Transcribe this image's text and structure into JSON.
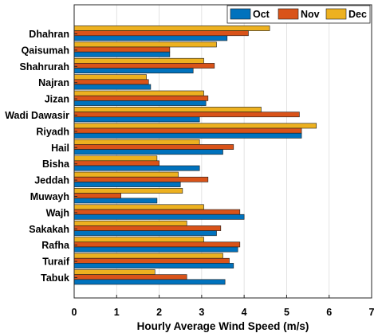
{
  "chart_data": {
    "type": "bar",
    "orientation": "horizontal",
    "categories": [
      "Dhahran",
      "Qaisumah",
      "Shahrurah",
      "Najran",
      "Jizan",
      "Wadi Dawasir",
      "Riyadh",
      "Hail",
      "Bisha",
      "Jeddah",
      "Muwayh",
      "Wajh",
      "Sakakah",
      "Rafha",
      "Turaif",
      "Tabuk"
    ],
    "series": [
      {
        "name": "Oct",
        "color": "#0072BD",
        "values": [
          3.6,
          2.25,
          2.8,
          1.8,
          3.1,
          2.95,
          5.35,
          3.5,
          2.95,
          2.5,
          1.95,
          4.0,
          3.35,
          3.85,
          3.75,
          3.55
        ]
      },
      {
        "name": "Nov",
        "color": "#D95319",
        "values": [
          4.1,
          2.25,
          3.3,
          1.75,
          3.15,
          5.3,
          5.35,
          3.75,
          2.0,
          3.15,
          1.1,
          3.9,
          3.45,
          3.9,
          3.65,
          2.65
        ]
      },
      {
        "name": "Dec",
        "color": "#EDB120",
        "values": [
          4.6,
          3.35,
          3.05,
          1.7,
          3.05,
          4.4,
          5.7,
          2.95,
          1.95,
          2.45,
          2.55,
          3.05,
          2.65,
          3.05,
          3.5,
          1.9
        ]
      }
    ],
    "xlabel": "Hourly Average Wind Speed (m/s)",
    "ylabel": "",
    "xlim": [
      0,
      7
    ],
    "xticks": [
      "0",
      "1",
      "2",
      "3",
      "4",
      "5",
      "6",
      "7"
    ],
    "grid": true,
    "legend_position": "top-right"
  }
}
